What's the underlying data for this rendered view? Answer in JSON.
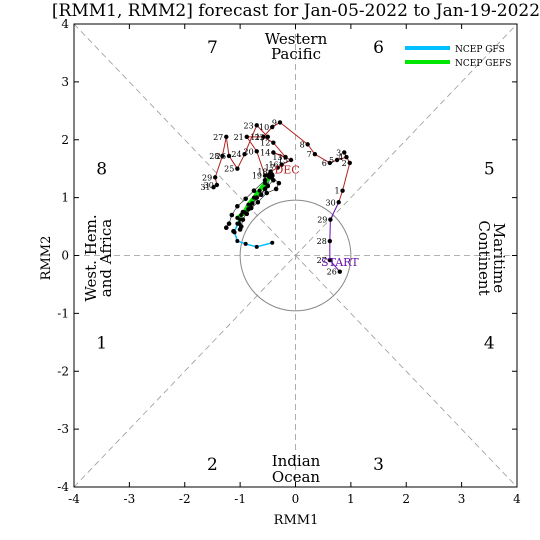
{
  "chart_data": {
    "type": "scatter",
    "title": "[RMM1, RMM2] forecast for Jan-05-2022 to Jan-19-2022",
    "xlabel": "RMM1",
    "ylabel": "RMM2",
    "xlim": [
      -4,
      4
    ],
    "ylim": [
      -4,
      4
    ],
    "xticks": [
      -4,
      -3,
      -2,
      -1,
      0,
      1,
      2,
      3,
      4
    ],
    "yticks": [
      -4,
      -3,
      -2,
      -1,
      0,
      1,
      2,
      3,
      4
    ],
    "grid": false,
    "legend_position": "top-right",
    "phases": [
      {
        "label": "1",
        "x": -3.5,
        "y": -1.5
      },
      {
        "label": "2",
        "x": -1.5,
        "y": -3.6
      },
      {
        "label": "3",
        "x": 1.5,
        "y": -3.6
      },
      {
        "label": "4",
        "x": 3.5,
        "y": -1.5
      },
      {
        "label": "5",
        "x": 3.5,
        "y": 1.5
      },
      {
        "label": "6",
        "x": 1.5,
        "y": 3.6
      },
      {
        "label": "7",
        "x": -1.5,
        "y": 3.6
      },
      {
        "label": "8",
        "x": -3.5,
        "y": 1.5
      }
    ],
    "regions": {
      "top": [
        "Western",
        "Pacific"
      ],
      "bottom": [
        "Indian",
        "Ocean"
      ],
      "left": [
        "West. Hem.",
        "and Africa"
      ],
      "right": [
        "Maritime",
        "Continent"
      ]
    },
    "start_label": "START",
    "dec_label": "DEC",
    "observed": {
      "color": "#b22222",
      "points": [
        {
          "d": "26",
          "x": 0.8,
          "y": -0.28
        },
        {
          "d": "27",
          "x": 0.62,
          "y": -0.08
        },
        {
          "d": "28",
          "x": 0.62,
          "y": 0.25
        },
        {
          "d": "29",
          "x": 0.63,
          "y": 0.62
        },
        {
          "d": "30",
          "x": 0.78,
          "y": 0.92
        },
        {
          "d": "1",
          "x": 0.85,
          "y": 1.12
        },
        {
          "d": "2",
          "x": 0.98,
          "y": 1.6
        },
        {
          "d": "3",
          "x": 0.88,
          "y": 1.78
        },
        {
          "d": "4",
          "x": 0.92,
          "y": 1.7
        },
        {
          "d": "5",
          "x": 0.75,
          "y": 1.65
        },
        {
          "d": "6",
          "x": 0.62,
          "y": 1.6
        },
        {
          "d": "7",
          "x": 0.35,
          "y": 1.75
        },
        {
          "d": "8",
          "x": 0.22,
          "y": 1.92
        },
        {
          "d": "9",
          "x": -0.28,
          "y": 2.3
        },
        {
          "d": "10",
          "x": -0.42,
          "y": 2.22
        },
        {
          "d": "11",
          "x": -0.58,
          "y": 2.05
        },
        {
          "d": "12",
          "x": -0.4,
          "y": 1.95
        },
        {
          "d": "13",
          "x": -0.18,
          "y": 1.7
        },
        {
          "d": "14",
          "x": -0.4,
          "y": 1.78
        },
        {
          "d": "15",
          "x": -0.08,
          "y": 1.65
        },
        {
          "d": "16",
          "x": -0.25,
          "y": 1.57
        },
        {
          "d": "17",
          "x": -0.32,
          "y": 1.52
        },
        {
          "d": "18",
          "x": -0.45,
          "y": 1.45
        },
        {
          "d": "19",
          "x": -0.55,
          "y": 1.38
        },
        {
          "d": "20",
          "x": -0.7,
          "y": 1.8
        },
        {
          "d": "21",
          "x": -0.88,
          "y": 2.05
        },
        {
          "d": "22",
          "x": -0.5,
          "y": 2.05
        },
        {
          "d": "23",
          "x": -0.7,
          "y": 2.25
        },
        {
          "d": "24",
          "x": -0.92,
          "y": 1.75
        },
        {
          "d": "25",
          "x": -1.05,
          "y": 1.5
        },
        {
          "d": "26",
          "x": -1.2,
          "y": 1.72
        },
        {
          "d": "27",
          "x": -1.25,
          "y": 2.05
        },
        {
          "d": "28",
          "x": -1.32,
          "y": 1.72
        },
        {
          "d": "29",
          "x": -1.45,
          "y": 1.35
        },
        {
          "d": "30",
          "x": -1.42,
          "y": 1.22
        },
        {
          "d": "31",
          "x": -1.48,
          "y": 1.18
        }
      ]
    },
    "series": [
      {
        "name": "NCEP GFS",
        "color": "#00bfff",
        "points": [
          [
            -0.45,
            1.38
          ],
          [
            -0.52,
            1.22
          ],
          [
            -0.7,
            1.08
          ],
          [
            -0.82,
            0.85
          ],
          [
            -0.95,
            0.72
          ],
          [
            -1.05,
            0.55
          ],
          [
            -1.1,
            0.4
          ],
          [
            -1.05,
            0.25
          ],
          [
            -0.9,
            0.2
          ],
          [
            -0.7,
            0.15
          ],
          [
            -0.42,
            0.22
          ]
        ]
      },
      {
        "name": "NCEP GEFS",
        "color": "#00e600",
        "points": [
          [
            -0.45,
            1.38
          ],
          [
            -0.55,
            1.25
          ],
          [
            -0.65,
            1.12
          ],
          [
            -0.75,
            1.0
          ],
          [
            -0.85,
            0.88
          ],
          [
            -0.92,
            0.75
          ],
          [
            -0.98,
            0.7
          ],
          [
            -1.05,
            0.65
          ],
          [
            -1.0,
            0.62
          ]
        ]
      }
    ],
    "ensemble": {
      "color": "#000000",
      "points": [
        [
          -0.45,
          1.38
        ],
        [
          -0.5,
          1.2
        ],
        [
          -0.62,
          1.05
        ],
        [
          -0.78,
          0.9
        ],
        [
          -0.95,
          0.75
        ],
        [
          -1.02,
          0.55
        ],
        [
          -1.12,
          0.42
        ],
        [
          -0.4,
          1.3
        ],
        [
          -0.55,
          1.15
        ],
        [
          -0.7,
          1.0
        ],
        [
          -0.85,
          0.8
        ],
        [
          -0.95,
          0.62
        ],
        [
          -0.98,
          0.5
        ],
        [
          -1.0,
          0.45
        ],
        [
          -0.55,
          1.3
        ],
        [
          -0.75,
          1.12
        ],
        [
          -0.9,
          0.98
        ],
        [
          -1.05,
          0.85
        ],
        [
          -1.15,
          0.7
        ],
        [
          -1.2,
          0.55
        ],
        [
          -1.25,
          0.48
        ],
        [
          -0.3,
          1.25
        ],
        [
          -0.35,
          1.15
        ],
        [
          -0.52,
          1.08
        ],
        [
          -0.68,
          0.92
        ],
        [
          -0.8,
          0.82
        ],
        [
          -0.88,
          0.72
        ]
      ]
    },
    "ensemble_paths": [
      [
        [
          -0.45,
          1.38
        ],
        [
          -0.5,
          1.2
        ],
        [
          -0.62,
          1.05
        ],
        [
          -0.78,
          0.9
        ],
        [
          -0.95,
          0.75
        ],
        [
          -1.02,
          0.55
        ],
        [
          -1.12,
          0.42
        ]
      ],
      [
        [
          -0.45,
          1.38
        ],
        [
          -0.4,
          1.3
        ],
        [
          -0.55,
          1.15
        ],
        [
          -0.7,
          1.0
        ],
        [
          -0.85,
          0.8
        ],
        [
          -0.95,
          0.62
        ],
        [
          -0.98,
          0.5
        ],
        [
          -1.0,
          0.45
        ]
      ],
      [
        [
          -0.45,
          1.38
        ],
        [
          -0.55,
          1.3
        ],
        [
          -0.75,
          1.12
        ],
        [
          -0.9,
          0.98
        ],
        [
          -1.05,
          0.85
        ],
        [
          -1.15,
          0.7
        ],
        [
          -1.2,
          0.55
        ],
        [
          -1.25,
          0.48
        ]
      ],
      [
        [
          -0.45,
          1.38
        ],
        [
          -0.3,
          1.25
        ],
        [
          -0.35,
          1.15
        ],
        [
          -0.52,
          1.08
        ],
        [
          -0.68,
          0.92
        ],
        [
          -0.8,
          0.82
        ],
        [
          -0.88,
          0.72
        ]
      ]
    ]
  }
}
